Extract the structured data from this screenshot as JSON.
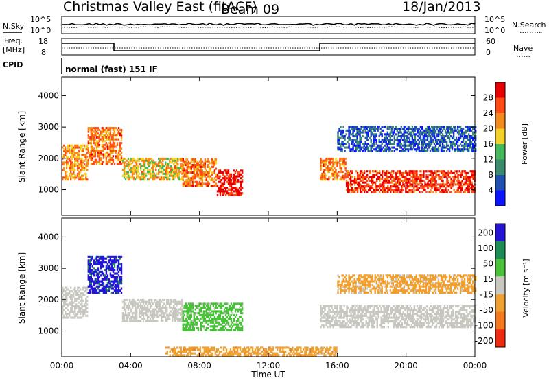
{
  "header": {
    "title": "Christmas Valley East (fitACF)",
    "beam": "Beam 09",
    "date": "18/Jan/2013"
  },
  "noise_panel": {
    "left_label": "N.Sky",
    "right_label": "N.Search",
    "left_ticks": [
      "10^5",
      "10^0"
    ],
    "right_ticks": [
      "10^5",
      "10^0"
    ]
  },
  "freq_panel": {
    "left_label_1": "Freq.",
    "left_label_2": "[MHz]",
    "right_label": "Nave",
    "left_ticks": [
      "18",
      "8"
    ],
    "right_ticks": [
      "60",
      "0"
    ]
  },
  "cpid": {
    "label": "CPID",
    "value": "normal (fast) 151 IF"
  },
  "x_axis": {
    "label": "Time UT",
    "ticks": [
      "00:00",
      "04:00",
      "08:00",
      "12:00",
      "16:00",
      "20:00",
      "00:00"
    ]
  },
  "colors": {
    "power": [
      "#0a14ff",
      "#1f4fb0",
      "#3a8b6e",
      "#44b85a",
      "#f2d12a",
      "#f28a1c",
      "#ff4a14",
      "#e80000"
    ],
    "velocity": [
      "#2415d6",
      "#1d8c55",
      "#49c23a",
      "#c8c8c0",
      "#f0a030",
      "#f5781c",
      "#ee2a10"
    ]
  },
  "chart_data": [
    {
      "type": "heatmap",
      "panel": "power",
      "ylabel": "Slant Range [km]",
      "yticks": [
        "1000",
        "2000",
        "3000",
        "4000"
      ],
      "ylim": [
        180,
        4600
      ],
      "xlim_hours": [
        0,
        24
      ],
      "colorbar": {
        "label": "Power [dB]",
        "ticks": [
          "4",
          "8",
          "12",
          "16",
          "20",
          "24",
          "28"
        ],
        "range": [
          0,
          30
        ]
      },
      "bands": [
        {
          "t0": 0.0,
          "t1": 1.5,
          "r0": 1300,
          "r1": 2400,
          "level": 20
        },
        {
          "t0": 1.5,
          "t1": 3.5,
          "r0": 1800,
          "r1": 3000,
          "level": 22
        },
        {
          "t0": 3.5,
          "t1": 7.0,
          "r0": 1300,
          "r1": 2000,
          "level": 18
        },
        {
          "t0": 7.0,
          "t1": 9.0,
          "r0": 1100,
          "r1": 2000,
          "level": 22
        },
        {
          "t0": 9.0,
          "t1": 10.5,
          "r0": 800,
          "r1": 1600,
          "level": 28
        },
        {
          "t0": 15.0,
          "t1": 16.5,
          "r0": 1300,
          "r1": 2000,
          "level": 22
        },
        {
          "t0": 16.5,
          "t1": 24.0,
          "r0": 900,
          "r1": 1600,
          "level": 26
        },
        {
          "t0": 16.0,
          "t1": 24.0,
          "r0": 2200,
          "r1": 3000,
          "level": 6
        }
      ]
    },
    {
      "type": "heatmap",
      "panel": "velocity",
      "ylabel": "Slant Range [km]",
      "yticks": [
        "1000",
        "2000",
        "3000",
        "4000"
      ],
      "ylim": [
        180,
        4600
      ],
      "xlim_hours": [
        0,
        24
      ],
      "colorbar": {
        "label": "Velocity [m s⁻¹]",
        "ticks": [
          "200",
          "100",
          "50",
          "15",
          "-15",
          "-50",
          "-100",
          "-200"
        ],
        "range": [
          -250,
          250
        ]
      },
      "bands": [
        {
          "t0": 0.0,
          "t1": 1.5,
          "r0": 1400,
          "r1": 2400,
          "level": 0
        },
        {
          "t0": 1.5,
          "t1": 3.5,
          "r0": 2200,
          "r1": 3400,
          "level": 200
        },
        {
          "t0": 3.5,
          "t1": 7.0,
          "r0": 1300,
          "r1": 2000,
          "level": 0
        },
        {
          "t0": 7.0,
          "t1": 10.5,
          "r0": 1000,
          "r1": 1900,
          "level": 60
        },
        {
          "t0": 15.0,
          "t1": 24.0,
          "r0": 1100,
          "r1": 1800,
          "level": 0
        },
        {
          "t0": 16.0,
          "t1": 24.0,
          "r0": 2200,
          "r1": 2800,
          "level": -60
        },
        {
          "t0": 6.0,
          "t1": 16.0,
          "r0": 200,
          "r1": 450,
          "level": -80
        }
      ]
    }
  ]
}
